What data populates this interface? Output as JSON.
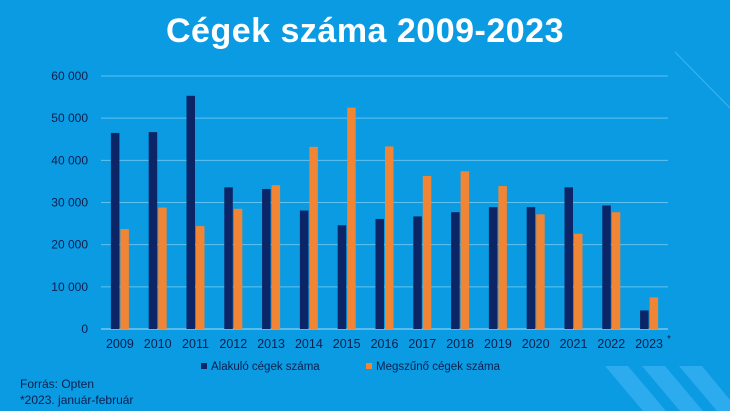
{
  "slide": {
    "title": "Cégek száma 2009-2023",
    "source_line1": "Forrás: Opten",
    "source_line2": "*2023. január-február",
    "asterisk": "*"
  },
  "colors": {
    "background": "#0a9be3",
    "series1": "#0b2566",
    "series2": "#ef8535",
    "axis_text": "#0b1f4d",
    "grid": "#5fc2f0"
  },
  "chart_data": {
    "type": "bar",
    "title": "Cégek száma 2009-2023",
    "categories": [
      "2009",
      "2010",
      "2011",
      "2012",
      "2013",
      "2014",
      "2015",
      "2016",
      "2017",
      "2018",
      "2019",
      "2020",
      "2021",
      "2022",
      "2023"
    ],
    "series": [
      {
        "name": "Alakuló cégek száma",
        "values": [
          46500,
          46700,
          55300,
          33600,
          33200,
          28100,
          24600,
          26100,
          26700,
          27700,
          28900,
          28900,
          33600,
          29300,
          4400
        ]
      },
      {
        "name": "Megszűnő cégek száma",
        "values": [
          23700,
          28800,
          24400,
          28500,
          34100,
          43200,
          52500,
          43300,
          36300,
          37400,
          33900,
          27200,
          22600,
          27700,
          7500
        ]
      }
    ],
    "y_ticks": [
      "0",
      "10 000",
      "20 000",
      "30 000",
      "40 000",
      "50 000",
      "60 000"
    ],
    "ylim": [
      0,
      60000
    ],
    "grid": true,
    "legend_position": "bottom"
  }
}
